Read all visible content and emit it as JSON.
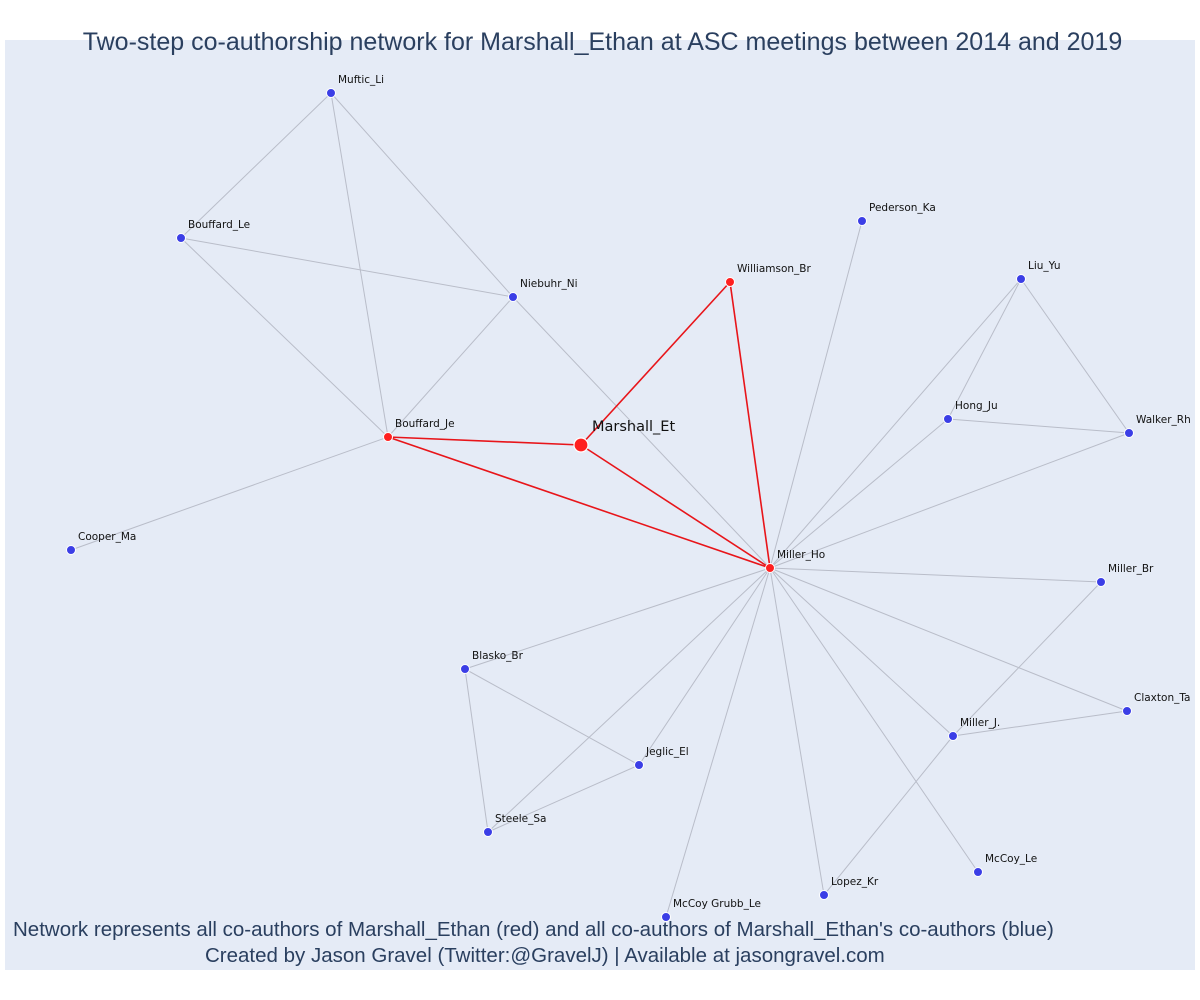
{
  "title": "Two-step co-authorship network for Marshall_Ethan at ASC meetings between 2014 and 2019",
  "caption_line1": "Network represents all co-authors of Marshall_Ethan (red) and all co-authors of Marshall_Ethan's co-authors (blue)",
  "caption_line2": "Created by Jason Gravel (Twitter:@GravelJ) | Available at jasongravel.com",
  "colors": {
    "background": "#e5ebf6",
    "first_step": "#ff2020",
    "second_step": "#3b3ee6",
    "red_edge": "#e8151a",
    "gray_edge": "#b9bdc9",
    "text": "#2a3f5f"
  },
  "nodes": [
    {
      "id": "Marshall_Et",
      "label": "Marshall_Et",
      "group": "ego"
    },
    {
      "id": "Williamson_Br",
      "label": "Williamson_Br",
      "group": "red"
    },
    {
      "id": "Bouffard_Je",
      "label": "Bouffard_Je",
      "group": "red"
    },
    {
      "id": "Miller_Ho",
      "label": "Miller_Ho",
      "group": "red"
    },
    {
      "id": "Muftic_Li",
      "label": "Muftic_Li",
      "group": "blue"
    },
    {
      "id": "Bouffard_Le",
      "label": "Bouffard_Le",
      "group": "blue"
    },
    {
      "id": "Niebuhr_Ni",
      "label": "Niebuhr_Ni",
      "group": "blue"
    },
    {
      "id": "Cooper_Ma",
      "label": "Cooper_Ma",
      "group": "blue"
    },
    {
      "id": "Pederson_Ka",
      "label": "Pederson_Ka",
      "group": "blue"
    },
    {
      "id": "Liu_Yu",
      "label": "Liu_Yu",
      "group": "blue"
    },
    {
      "id": "Hong_Ju",
      "label": "Hong_Ju",
      "group": "blue"
    },
    {
      "id": "Walker_Rh",
      "label": "Walker_Rh",
      "group": "blue"
    },
    {
      "id": "Miller_Br",
      "label": "Miller_Br",
      "group": "blue"
    },
    {
      "id": "Claxton_Ta",
      "label": "Claxton_Ta",
      "group": "blue"
    },
    {
      "id": "Miller_J.",
      "label": "Miller_J.",
      "group": "blue"
    },
    {
      "id": "Blasko_Br",
      "label": "Blasko_Br",
      "group": "blue"
    },
    {
      "id": "Jeglic_El",
      "label": "Jeglic_El",
      "group": "blue"
    },
    {
      "id": "Steele_Sa",
      "label": "Steele_Sa",
      "group": "blue"
    },
    {
      "id": "McCoy_Le",
      "label": "McCoy_Le",
      "group": "blue"
    },
    {
      "id": "Lopez_Kr",
      "label": "Lopez_Kr",
      "group": "blue"
    },
    {
      "id": "McCoy Grubb_Le",
      "label": "McCoy Grubb_Le",
      "group": "blue"
    }
  ],
  "edges": [
    [
      "Marshall_Et",
      "Williamson_Br",
      "red"
    ],
    [
      "Marshall_Et",
      "Bouffard_Je",
      "red"
    ],
    [
      "Marshall_Et",
      "Miller_Ho",
      "red"
    ],
    [
      "Williamson_Br",
      "Miller_Ho",
      "red"
    ],
    [
      "Bouffard_Je",
      "Miller_Ho",
      "red"
    ],
    [
      "Muftic_Li",
      "Bouffard_Le",
      "gray"
    ],
    [
      "Muftic_Li",
      "Niebuhr_Ni",
      "gray"
    ],
    [
      "Muftic_Li",
      "Bouffard_Je",
      "gray"
    ],
    [
      "Bouffard_Le",
      "Niebuhr_Ni",
      "gray"
    ],
    [
      "Bouffard_Le",
      "Bouffard_Je",
      "gray"
    ],
    [
      "Niebuhr_Ni",
      "Bouffard_Je",
      "gray"
    ],
    [
      "Niebuhr_Ni",
      "Miller_Ho",
      "gray"
    ],
    [
      "Bouffard_Je",
      "Cooper_Ma",
      "gray"
    ],
    [
      "Pederson_Ka",
      "Miller_Ho",
      "gray"
    ],
    [
      "Liu_Yu",
      "Hong_Ju",
      "gray"
    ],
    [
      "Liu_Yu",
      "Walker_Rh",
      "gray"
    ],
    [
      "Liu_Yu",
      "Miller_Ho",
      "gray"
    ],
    [
      "Hong_Ju",
      "Walker_Rh",
      "gray"
    ],
    [
      "Hong_Ju",
      "Miller_Ho",
      "gray"
    ],
    [
      "Walker_Rh",
      "Miller_Ho",
      "gray"
    ],
    [
      "Miller_Br",
      "Miller_Ho",
      "gray"
    ],
    [
      "Miller_Br",
      "Miller_J.",
      "gray"
    ],
    [
      "Claxton_Ta",
      "Miller_Ho",
      "gray"
    ],
    [
      "Claxton_Ta",
      "Miller_J.",
      "gray"
    ],
    [
      "Miller_J.",
      "Miller_Ho",
      "gray"
    ],
    [
      "Miller_J.",
      "Lopez_Kr",
      "gray"
    ],
    [
      "Blasko_Br",
      "Miller_Ho",
      "gray"
    ],
    [
      "Blasko_Br",
      "Jeglic_El",
      "gray"
    ],
    [
      "Blasko_Br",
      "Steele_Sa",
      "gray"
    ],
    [
      "Jeglic_El",
      "Steele_Sa",
      "gray"
    ],
    [
      "Jeglic_El",
      "Miller_Ho",
      "gray"
    ],
    [
      "Steele_Sa",
      "Miller_Ho",
      "gray"
    ],
    [
      "McCoy_Le",
      "Miller_Ho",
      "gray"
    ],
    [
      "Lopez_Kr",
      "Miller_Ho",
      "gray"
    ],
    [
      "McCoy Grubb_Le",
      "Miller_Ho",
      "gray"
    ]
  ]
}
